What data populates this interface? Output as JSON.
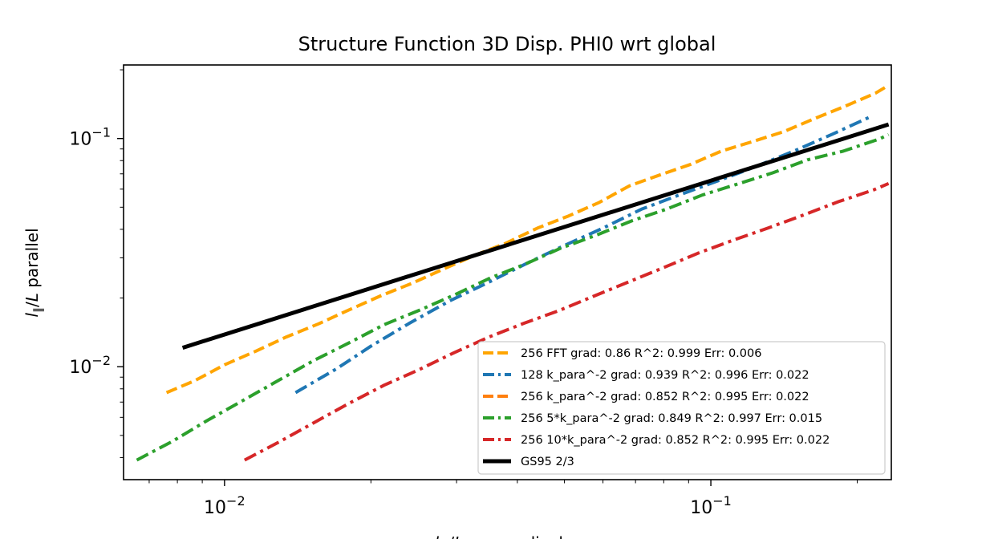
{
  "chart_data": {
    "type": "line",
    "title": "Structure Function 3D Disp. PHI0 wrt global",
    "xlabel": "l_⊥/L perpendicular",
    "ylabel": "l_∥/L parallel",
    "xscale": "log",
    "yscale": "log",
    "xlim": [
      0.0062,
      0.235
    ],
    "ylim": [
      0.0032,
      0.21
    ],
    "xticks": [
      {
        "value": 0.01,
        "label": "10^-2"
      },
      {
        "value": 0.1,
        "label": "10^-1"
      }
    ],
    "yticks": [
      {
        "value": 0.01,
        "label": "10^-2"
      },
      {
        "value": 0.1,
        "label": "10^-1"
      }
    ],
    "grid": false,
    "legend_position": "lower-right",
    "series": [
      {
        "name": "256 FFT grad: 0.86 R^2: 0.999  Err: 0.006",
        "color": "#ffa500",
        "dash": "dashed",
        "x": [
          0.0076,
          0.0087,
          0.01,
          0.0116,
          0.0134,
          0.0156,
          0.018,
          0.021,
          0.0243,
          0.0282,
          0.0326,
          0.0378,
          0.044,
          0.051,
          0.059,
          0.068,
          0.079,
          0.091,
          0.105,
          0.122,
          0.141,
          0.163,
          0.188,
          0.218,
          0.232
        ],
        "y": [
          0.0077,
          0.0087,
          0.0102,
          0.0117,
          0.0135,
          0.0154,
          0.0177,
          0.0205,
          0.0232,
          0.0268,
          0.0307,
          0.0347,
          0.0405,
          0.0458,
          0.0525,
          0.062,
          0.0695,
          0.0771,
          0.088,
          0.097,
          0.107,
          0.122,
          0.138,
          0.158,
          0.171
        ]
      },
      {
        "name": "128 k_para^-2 grad: 0.939 R^2: 0.996  Err: 0.022",
        "color": "#1f77b4",
        "dash": "dashdot",
        "x": [
          0.014,
          0.017,
          0.02,
          0.024,
          0.029,
          0.035,
          0.042,
          0.05,
          0.06,
          0.072,
          0.086,
          0.103,
          0.123,
          0.148,
          0.177,
          0.212
        ],
        "y": [
          0.0077,
          0.0098,
          0.0123,
          0.0155,
          0.0194,
          0.0235,
          0.0285,
          0.034,
          0.0405,
          0.049,
          0.0565,
          0.065,
          0.075,
          0.088,
          0.104,
          0.124
        ]
      },
      {
        "name": "256 k_para^-2 grad: 0.852 R^2: 0.995  Err: 0.022",
        "color": "#ff7f0e",
        "dash": "dashed",
        "x": [],
        "y": []
      },
      {
        "name": "256 5*k_para^-2 grad: 0.849 R^2: 0.997  Err: 0.015",
        "color": "#2ca02c",
        "dash": "dashdot",
        "x": [
          0.0066,
          0.0078,
          0.0092,
          0.0109,
          0.0129,
          0.0152,
          0.018,
          0.0213,
          0.0252,
          0.0298,
          0.0352,
          0.0416,
          0.049,
          0.058,
          0.069,
          0.081,
          0.096,
          0.113,
          0.134,
          0.158,
          0.187,
          0.222,
          0.232
        ],
        "y": [
          0.0039,
          0.0047,
          0.0058,
          0.0071,
          0.0087,
          0.0106,
          0.0127,
          0.0153,
          0.0177,
          0.0207,
          0.0245,
          0.0282,
          0.033,
          0.0376,
          0.0437,
          0.049,
          0.0565,
          0.063,
          0.0707,
          0.0806,
          0.088,
          0.0995,
          0.104
        ]
      },
      {
        "name": "256 10*k_para^-2 grad: 0.852 R^2: 0.995  Err: 0.022",
        "color": "#d62728",
        "dash": "dashdot",
        "x": [
          0.011,
          0.013,
          0.0153,
          0.018,
          0.0213,
          0.0251,
          0.0296,
          0.035,
          0.0413,
          0.0487,
          0.0575,
          0.068,
          0.08,
          0.094,
          0.111,
          0.131,
          0.155,
          0.183,
          0.216,
          0.232
        ],
        "y": [
          0.0039,
          0.0047,
          0.0057,
          0.0069,
          0.0083,
          0.0097,
          0.0115,
          0.0135,
          0.0155,
          0.0176,
          0.0204,
          0.0236,
          0.0272,
          0.0314,
          0.0358,
          0.0405,
          0.0462,
          0.0529,
          0.0595,
          0.0635
        ]
      },
      {
        "name": "GS95 2/3",
        "color": "#000000",
        "dash": "solid",
        "x": [
          0.0082,
          0.232
        ],
        "y": [
          0.0121,
          0.1153
        ]
      }
    ]
  }
}
